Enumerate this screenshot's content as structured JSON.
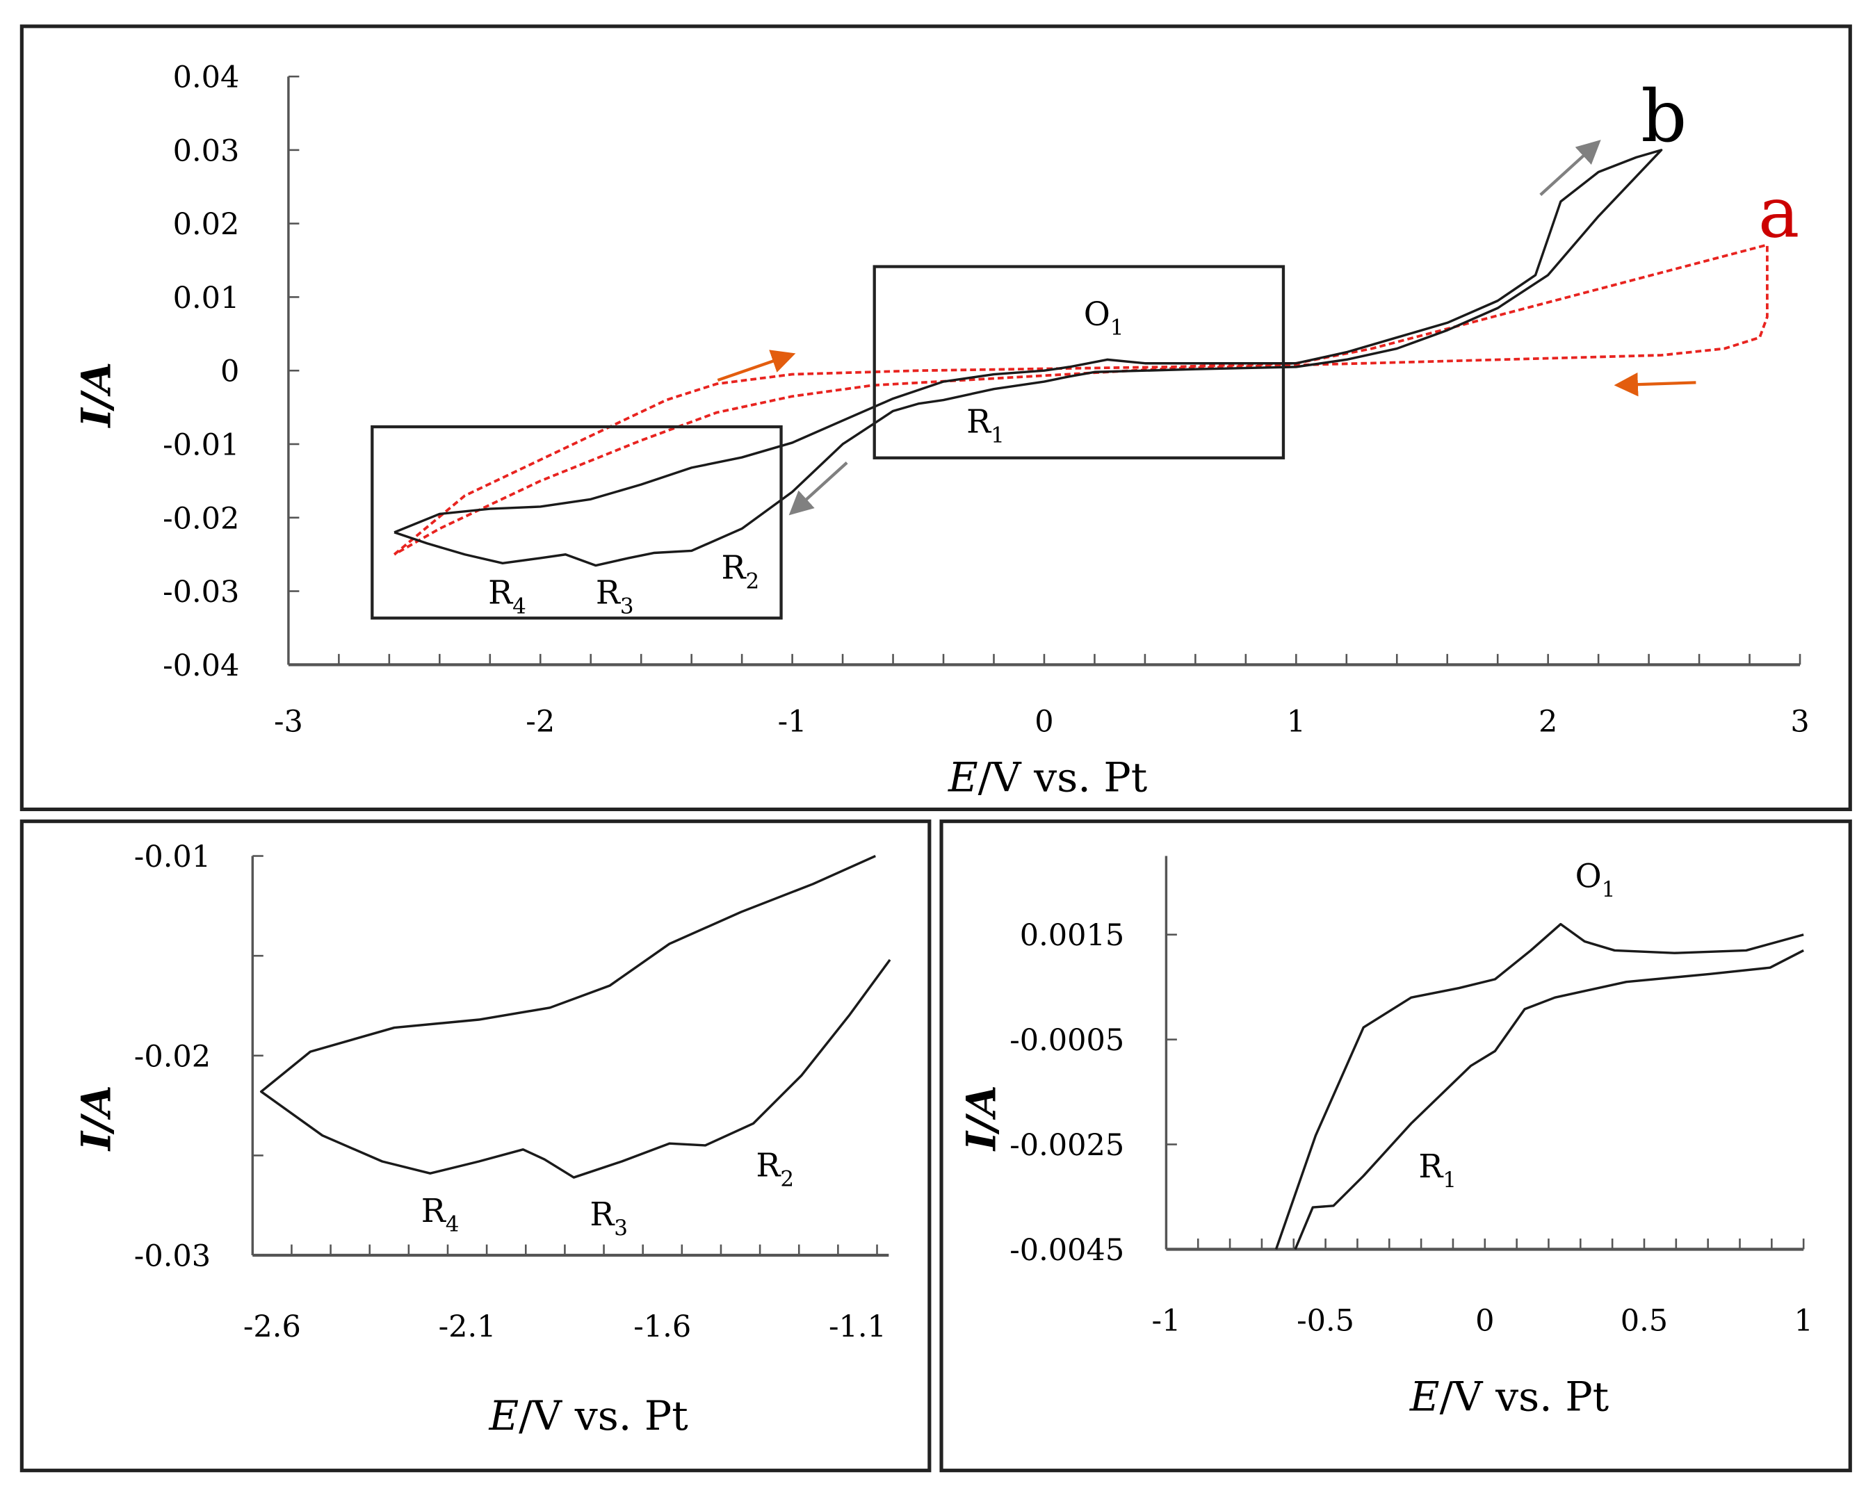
{
  "chart_data": [
    {
      "type": "line",
      "panel": "main",
      "xlabel": "E/V vs. Pt",
      "ylabel": "I/A",
      "xlim": [
        -3,
        3
      ],
      "ylim": [
        -0.04,
        0.04
      ],
      "xticks": [
        "-3",
        "-2",
        "-1",
        "0",
        "1",
        "2",
        "3"
      ],
      "yticks": [
        "0.04",
        "0.03",
        "0.02",
        "0.01",
        "0",
        "-0.01",
        "-0.02",
        "-0.03",
        "-0.04"
      ],
      "grid": false,
      "series": [
        {
          "name": "a",
          "color": "#e8231f",
          "style": "dashed",
          "x": [
            -2.58,
            -2.3,
            -1.9,
            -1.5,
            -1.3,
            -1.0,
            -0.5,
            0.5,
            1.0,
            1.3,
            2.87,
            2.87,
            2.84,
            2.7,
            2.45,
            1.5,
            0.5,
            -0.68,
            -1.0,
            -1.3,
            -1.6,
            -2.0,
            -2.4,
            -2.58
          ],
          "y": [
            -0.025,
            -0.017,
            -0.0105,
            -0.004,
            -0.0018,
            -0.0005,
            0,
            0.0005,
            0.001,
            0.003,
            0.0171,
            0.0073,
            0.0045,
            0.003,
            0.0021,
            0.0012,
            0.0003,
            -0.002,
            -0.0035,
            -0.0057,
            -0.0095,
            -0.015,
            -0.0215,
            -0.025
          ]
        },
        {
          "name": "b",
          "color": "#1a1a1a",
          "style": "solid",
          "x": [
            -2.58,
            -2.4,
            -2.2,
            -2.0,
            -1.8,
            -1.6,
            -1.4,
            -1.2,
            -1.0,
            -0.8,
            -0.6,
            -0.4,
            -0.2,
            0,
            0.1,
            0.25,
            0.4,
            0.6,
            0.8,
            1.0,
            1.2,
            1.4,
            1.6,
            1.8,
            1.95,
            2.05,
            2.2,
            2.35,
            2.45,
            2.2,
            2.0,
            1.8,
            1.6,
            1.4,
            1.2,
            1.0,
            0.6,
            0.2,
            0.1,
            0,
            -0.2,
            -0.4,
            -0.5,
            -0.6,
            -0.8,
            -1.0,
            -1.2,
            -1.4,
            -1.55,
            -1.65,
            -1.78,
            -1.9,
            -2.0,
            -2.15,
            -2.3,
            -2.45,
            -2.58
          ],
          "y": [
            -0.022,
            -0.0195,
            -0.0188,
            -0.0185,
            -0.0175,
            -0.0155,
            -0.0132,
            -0.0118,
            -0.0098,
            -0.0068,
            -0.0038,
            -0.0015,
            -0.0005,
            0,
            0.0005,
            0.0015,
            0.001,
            0.001,
            0.001,
            0.001,
            0.0025,
            0.0045,
            0.0065,
            0.0095,
            0.013,
            0.023,
            0.027,
            0.029,
            0.03,
            0.021,
            0.013,
            0.0085,
            0.0055,
            0.003,
            0.0015,
            0.0005,
            0.0002,
            -0.0002,
            -0.0008,
            -0.0015,
            -0.0025,
            -0.004,
            -0.0045,
            -0.0055,
            -0.01,
            -0.0165,
            -0.0215,
            -0.0245,
            -0.0248,
            -0.0255,
            -0.0265,
            -0.025,
            -0.0255,
            -0.0262,
            -0.025,
            -0.0235,
            -0.022
          ]
        }
      ],
      "annotations": {
        "curve_a": "a",
        "curve_b": "b",
        "o1": {
          "main": "O",
          "sub": "1"
        },
        "r1": {
          "main": "R",
          "sub": "1"
        },
        "r2": {
          "main": "R",
          "sub": "2"
        },
        "r3": {
          "main": "R",
          "sub": "3"
        },
        "r4": {
          "main": "R",
          "sub": "4"
        }
      },
      "colors": {
        "arrow_gray": "#808080",
        "arrow_orange": "#e35d0e"
      }
    },
    {
      "type": "line",
      "panel": "inset-left",
      "xlabel": "E/V vs. Pt",
      "ylabel": "I/A",
      "xlim": [
        -2.65,
        -1.02
      ],
      "ylim": [
        -0.03,
        -0.01
      ],
      "xticks": [
        "-2.6",
        "-2.1",
        "-1.6",
        "-1.1"
      ],
      "yticks": [
        "-0.01",
        "-0.02",
        "-0.03"
      ],
      "series": [
        {
          "color": "#1a1a1a",
          "x": [
            -1.017,
            -1.122,
            -1.244,
            -1.367,
            -1.49,
            -1.582,
            -1.704,
            -1.827,
            -1.902,
            -1.957,
            -2.07,
            -2.195,
            -2.318,
            -2.471,
            -2.628,
            -2.502,
            -2.287,
            -2.07,
            -1.888,
            -1.735,
            -1.582,
            -1.398,
            -1.214,
            -1.054
          ],
          "y": [
            -0.0152,
            -0.018,
            -0.021,
            -0.0234,
            -0.0245,
            -0.0244,
            -0.0253,
            -0.0261,
            -0.0252,
            -0.0247,
            -0.0253,
            -0.0259,
            -0.0253,
            -0.024,
            -0.0218,
            -0.0198,
            -0.0186,
            -0.0182,
            -0.0176,
            -0.0165,
            -0.0144,
            -0.0128,
            -0.0114,
            -0.01
          ]
        }
      ],
      "annotations": {
        "r2": {
          "main": "R",
          "sub": "2"
        },
        "r3": {
          "main": "R",
          "sub": "3"
        },
        "r4": {
          "main": "R",
          "sub": "4"
        }
      }
    },
    {
      "type": "line",
      "panel": "inset-right",
      "xlabel": "E/V vs. Pt",
      "ylabel": "I/A",
      "xlim": [
        -1,
        1
      ],
      "ylim": [
        -0.0045,
        0.003
      ],
      "xticks": [
        "-1",
        "-0.5",
        "0",
        "0.5",
        "1"
      ],
      "yticks": [
        "0.0015",
        "-0.0005",
        "-0.0025",
        "-0.0045"
      ],
      "series": [
        {
          "color": "#1a1a1a",
          "x": [
            -0.655,
            -0.531,
            -0.381,
            -0.231,
            -0.081,
            0.032,
            0.144,
            0.238,
            0.313,
            0.407,
            0.595,
            0.82,
            1.0
          ],
          "y": [
            -0.0045,
            -0.00233,
            -0.00027,
            0.0003,
            0.00048,
            0.00065,
            0.0012,
            0.0017,
            0.00137,
            0.0012,
            0.00115,
            0.0012,
            0.0015
          ]
        },
        {
          "color": "#1a1a1a",
          "x": [
            -0.595,
            -0.54,
            -0.475,
            -0.381,
            -0.231,
            -0.044,
            0.032,
            0.125,
            0.22,
            0.444,
            0.707,
            0.895,
            1.0
          ],
          "y": [
            -0.0045,
            -0.0037,
            -0.00367,
            -0.0031,
            -0.0021,
            -0.001,
            -0.00072,
            8e-05,
            0.0003,
            0.0006,
            0.00075,
            0.00087,
            0.0012
          ]
        }
      ],
      "annotations": {
        "o1": {
          "main": "O",
          "sub": "1"
        },
        "r1": {
          "main": "R",
          "sub": "1"
        }
      }
    }
  ]
}
